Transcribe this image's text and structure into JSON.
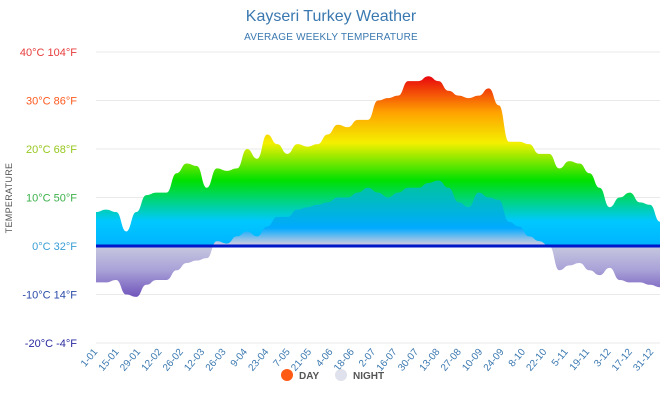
{
  "colors": {
    "title": "#3a78b0",
    "day_hot": "#e8000e",
    "day_warm": "#ffa200",
    "day_mild": "#f4f000",
    "day_cool": "#00e000",
    "day_cold": "#00c8ff",
    "zero_line": "#0018c8",
    "night_fill": "#c9cbe0",
    "night_fill_deep": "#7a62c0",
    "legend_day": "#ff5a14",
    "legend_night": "#dfe1ec",
    "tick_colors": [
      "#e83c3c",
      "#ff5a1e",
      "#97c81e",
      "#3cb04a",
      "#3a9fd6",
      "#2a4aa8",
      "#2a2aa0"
    ]
  },
  "chart_data": {
    "type": "area",
    "title": "Kayseri Turkey Weather",
    "subtitle": "AVERAGE WEEKLY TEMPERATURE",
    "ylabel": "TEMPERATURE",
    "ylim": [
      -20,
      40
    ],
    "yticks": [
      {
        "value": 40,
        "label": "40°C 104°F"
      },
      {
        "value": 30,
        "label": "30°C 86°F"
      },
      {
        "value": 20,
        "label": "20°C 68°F"
      },
      {
        "value": 10,
        "label": "10°C 50°F"
      },
      {
        "value": 0,
        "label": "0°C 32°F"
      },
      {
        "value": -10,
        "label": "-10°C 14°F"
      },
      {
        "value": -20,
        "label": "-20°C -4°F"
      }
    ],
    "grid": true,
    "legend_position": "bottom",
    "x_tick_labels": [
      "1-01",
      "15-01",
      "29-01",
      "12-02",
      "26-02",
      "12-03",
      "26-03",
      "9-04",
      "23-04",
      "7-05",
      "21-05",
      "4-06",
      "18-06",
      "2-07",
      "16-07",
      "30-07",
      "13-08",
      "27-08",
      "10-09",
      "24-09",
      "8-10",
      "22-10",
      "5-11",
      "19-11",
      "3-12",
      "17-12",
      "31-12"
    ],
    "series": [
      {
        "name": "DAY",
        "values": [
          7,
          7.5,
          7,
          3,
          7,
          10.5,
          11,
          11,
          15,
          17,
          16.5,
          12,
          16,
          15.5,
          16,
          20,
          18,
          23,
          21,
          19,
          21,
          20.5,
          21,
          23,
          25,
          24.5,
          26,
          26,
          30,
          30.5,
          31,
          34,
          34,
          35,
          34,
          32,
          31,
          30.5,
          31,
          32.5,
          29,
          21.5,
          21.5,
          21,
          19,
          19,
          16,
          17.5,
          17,
          15,
          12,
          8,
          10,
          11,
          9,
          8.5,
          5
        ]
      },
      {
        "name": "NIGHT",
        "values": [
          -7.5,
          -7.5,
          -7,
          -10,
          -10.5,
          -8,
          -7,
          -7,
          -5,
          -3.5,
          -3,
          -2.5,
          1,
          0.5,
          2,
          3,
          2,
          4,
          6,
          6,
          7.5,
          8,
          8.5,
          9,
          10,
          10,
          11,
          12,
          11,
          10,
          11,
          12,
          12,
          13,
          13.5,
          12,
          9,
          8,
          11,
          10,
          9.5,
          5,
          4,
          2,
          1,
          0,
          -5,
          -4,
          -3.5,
          -5,
          -6,
          -4.5,
          -7,
          -7.5,
          -7.5,
          -8,
          -8.5
        ]
      }
    ]
  }
}
